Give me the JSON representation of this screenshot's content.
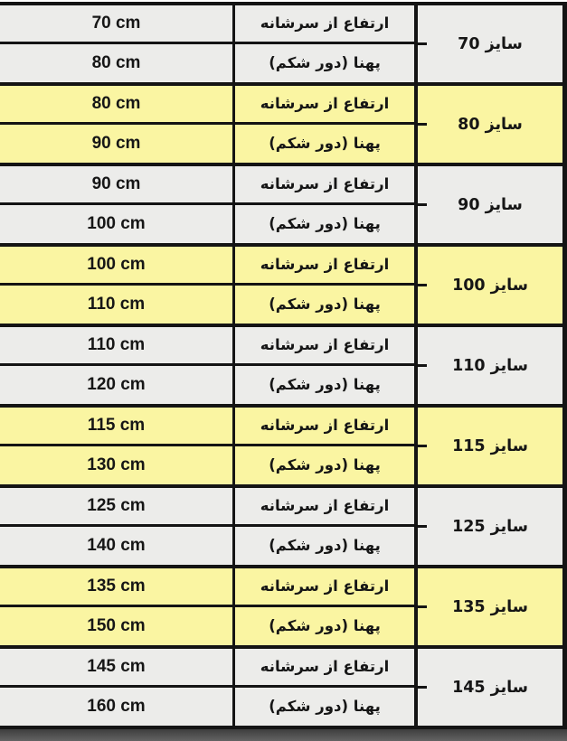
{
  "chart_data": {
    "type": "table",
    "title": "",
    "columns": [
      "measurement_value_cm",
      "measurement_label",
      "size"
    ],
    "row_labels": {
      "shoulder": "ارتفاع از سرشانه",
      "belly": "پهنا (دور شکم)"
    },
    "groups": [
      {
        "size_label": "سایز 70",
        "shoulder_value": "70 cm",
        "belly_value": "80 cm",
        "highlighted": false
      },
      {
        "size_label": "سایز 80",
        "shoulder_value": "80 cm",
        "belly_value": "90 cm",
        "highlighted": true
      },
      {
        "size_label": "سایز 90",
        "shoulder_value": "90 cm",
        "belly_value": "100 cm",
        "highlighted": false
      },
      {
        "size_label": "سایز 100",
        "shoulder_value": "100 cm",
        "belly_value": "110 cm",
        "highlighted": true
      },
      {
        "size_label": "سایز 110",
        "shoulder_value": "110 cm",
        "belly_value": "120 cm",
        "highlighted": false
      },
      {
        "size_label": "سایز 115",
        "shoulder_value": "115 cm",
        "belly_value": "130 cm",
        "highlighted": true
      },
      {
        "size_label": "سایز 125",
        "shoulder_value": "125 cm",
        "belly_value": "140 cm",
        "highlighted": false
      },
      {
        "size_label": "سایز 135",
        "shoulder_value": "135 cm",
        "belly_value": "150 cm",
        "highlighted": true
      },
      {
        "size_label": "سایز 145",
        "shoulder_value": "145 cm",
        "belly_value": "160 cm",
        "highlighted": false
      }
    ],
    "layout": {
      "grid": "3 columns, 9 groups of 2 rows, size cell merged per group",
      "legend": "none",
      "header_row": "none"
    }
  },
  "colors": {
    "highlight_row": "#faf5a2",
    "plain_row": "#ececea",
    "border": "#141414",
    "bottom_strip": "#555555",
    "page_bg": "#ffffff"
  }
}
